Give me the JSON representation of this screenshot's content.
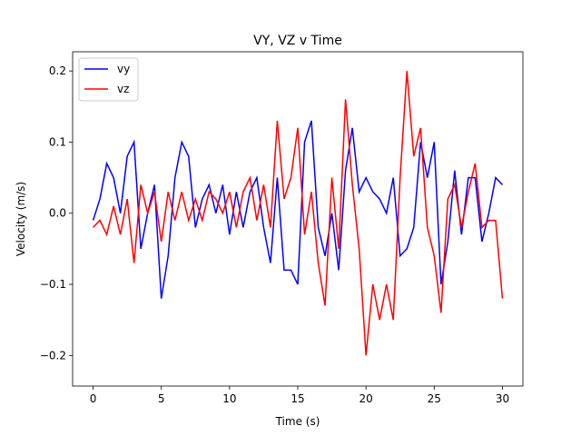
{
  "chart_data": {
    "type": "line",
    "title": "VY, VZ v Time",
    "xlabel": "Time (s)",
    "ylabel": "Velocity (m/s)",
    "x": [
      0,
      0.5,
      1,
      1.5,
      2,
      2.5,
      3,
      3.5,
      4,
      4.5,
      5,
      5.5,
      6,
      6.5,
      7,
      7.5,
      8,
      8.5,
      9,
      9.5,
      10,
      10.5,
      11,
      11.5,
      12,
      12.5,
      13,
      13.5,
      14,
      14.5,
      15,
      15.5,
      16,
      16.5,
      17,
      17.5,
      18,
      18.5,
      19,
      19.5,
      20,
      20.5,
      21,
      21.5,
      22,
      22.5,
      23,
      23.5,
      24,
      24.5,
      25,
      25.5,
      26,
      26.5,
      27,
      27.5,
      28,
      28.5,
      29,
      29.5,
      30
    ],
    "series": [
      {
        "name": "vy",
        "color": "#0000ff",
        "values": [
          -0.01,
          0.02,
          0.07,
          0.05,
          0.0,
          0.08,
          0.1,
          -0.05,
          0.0,
          0.04,
          -0.12,
          -0.06,
          0.05,
          0.1,
          0.08,
          -0.02,
          0.02,
          0.04,
          0.0,
          0.04,
          -0.03,
          0.03,
          -0.02,
          0.03,
          0.05,
          -0.02,
          -0.07,
          0.05,
          -0.08,
          -0.08,
          -0.1,
          0.1,
          0.13,
          -0.02,
          -0.06,
          0.0,
          -0.08,
          0.06,
          0.12,
          0.03,
          0.05,
          0.03,
          0.02,
          0.0,
          0.05,
          -0.06,
          -0.05,
          -0.02,
          0.1,
          0.05,
          0.1,
          -0.1,
          -0.04,
          0.06,
          -0.03,
          0.05,
          0.05,
          -0.04,
          0.0,
          0.05,
          0.04
        ]
      },
      {
        "name": "vz",
        "color": "#ff0000",
        "values": [
          -0.02,
          -0.01,
          -0.03,
          0.01,
          -0.03,
          0.02,
          -0.07,
          0.04,
          0.0,
          0.03,
          -0.04,
          0.03,
          -0.01,
          0.03,
          -0.01,
          0.02,
          -0.01,
          0.03,
          0.02,
          0.0,
          0.03,
          -0.02,
          0.03,
          0.05,
          -0.01,
          0.04,
          -0.02,
          0.13,
          0.02,
          0.05,
          0.12,
          -0.03,
          0.03,
          -0.07,
          -0.13,
          0.05,
          -0.05,
          0.16,
          0.04,
          -0.05,
          -0.2,
          -0.1,
          -0.15,
          -0.1,
          -0.15,
          0.05,
          0.2,
          0.08,
          0.12,
          -0.02,
          -0.06,
          -0.14,
          0.02,
          0.04,
          -0.02,
          0.03,
          0.07,
          -0.02,
          -0.01,
          -0.01,
          -0.12
        ]
      }
    ],
    "xlim": [
      -1.5,
      31.5
    ],
    "ylim": [
      -0.243,
      0.227
    ],
    "xticks": [
      0,
      5,
      10,
      15,
      20,
      25,
      30
    ],
    "yticks": [
      {
        "value": -0.2,
        "label": "−0.2"
      },
      {
        "value": -0.1,
        "label": "−0.1"
      },
      {
        "value": 0,
        "label": "0.0"
      },
      0.1,
      0.2
    ],
    "legend": "upper left",
    "grid": false
  }
}
